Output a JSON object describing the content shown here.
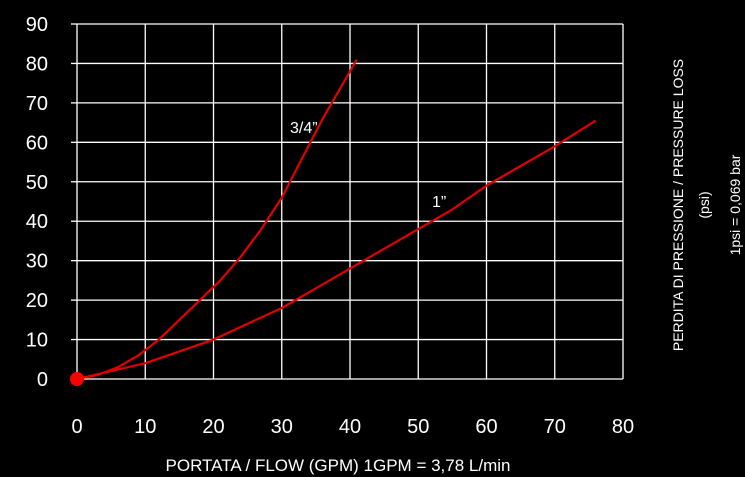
{
  "chart_data": {
    "type": "line",
    "title": "",
    "xlabel": "PORTATA / FLOW (GPM)  1GPM = 3,78 L/min",
    "ylabel_lines": [
      "PERDITA DI PRESSIONE / PRESSURE LOSS",
      "(psi)",
      "1psi = 0,069 bar"
    ],
    "xlim": [
      0,
      80
    ],
    "ylim": [
      0,
      90
    ],
    "x_ticks": [
      "0",
      "10",
      "20",
      "30",
      "40",
      "50",
      "60",
      "70",
      "80"
    ],
    "y_ticks": [
      "0",
      "10",
      "20",
      "30",
      "40",
      "50",
      "60",
      "70",
      "80",
      "90"
    ],
    "grid": true,
    "line_color": "#e00000",
    "grid_color": "#ffffff",
    "origin_marker_color": "#ff0000",
    "series": [
      {
        "name": "3/4”",
        "points": [
          [
            0,
            0
          ],
          [
            3,
            1
          ],
          [
            6,
            3
          ],
          [
            9,
            6
          ],
          [
            12,
            10
          ],
          [
            15,
            15
          ],
          [
            18,
            20
          ],
          [
            21,
            25
          ],
          [
            24,
            31
          ],
          [
            27,
            38
          ],
          [
            30,
            46
          ],
          [
            33,
            56
          ],
          [
            36,
            66
          ],
          [
            39,
            75
          ],
          [
            41,
            81
          ]
        ]
      },
      {
        "name": "1”",
        "points": [
          [
            0,
            0
          ],
          [
            5,
            2
          ],
          [
            10,
            4
          ],
          [
            15,
            7
          ],
          [
            20,
            10
          ],
          [
            25,
            14
          ],
          [
            30,
            18
          ],
          [
            35,
            23
          ],
          [
            40,
            28
          ],
          [
            45,
            33
          ],
          [
            50,
            38
          ],
          [
            55,
            43
          ],
          [
            60,
            49
          ],
          [
            65,
            54
          ],
          [
            70,
            59
          ],
          [
            76,
            65.5
          ]
        ]
      }
    ]
  }
}
